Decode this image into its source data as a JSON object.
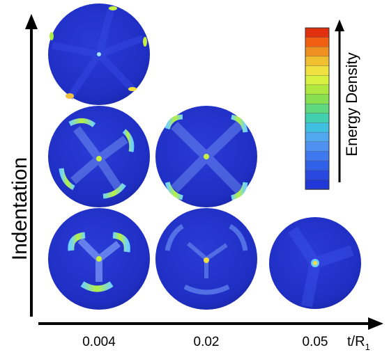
{
  "y_axis": {
    "label": "Indentation"
  },
  "x_axis": {
    "label": "t/R",
    "label_subscript": "1",
    "ticks": [
      "0.004",
      "0.02",
      "0.05"
    ]
  },
  "colorbar": {
    "label": "Energy Density"
  }
}
